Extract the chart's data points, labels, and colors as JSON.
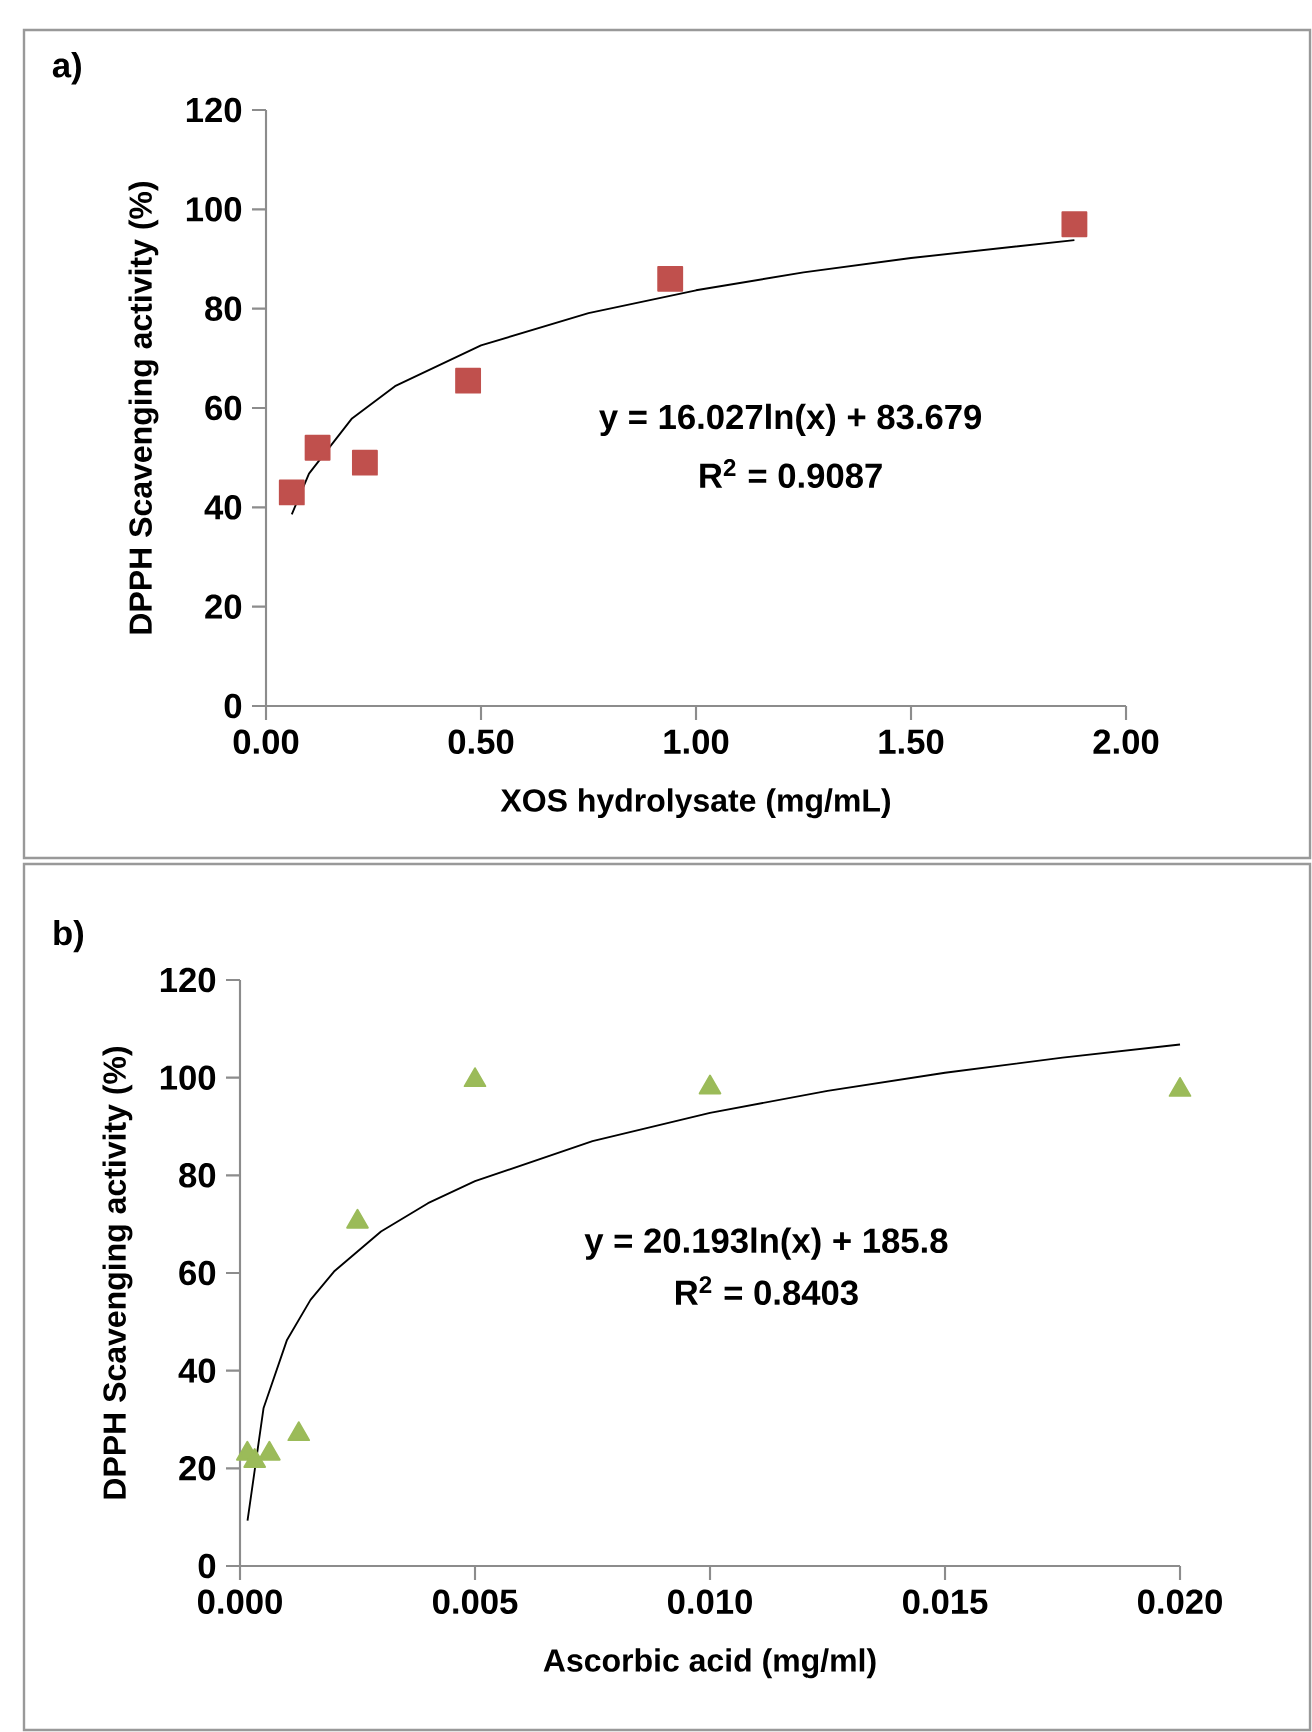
{
  "chart_data": [
    {
      "type": "scatter",
      "title": "a)",
      "xlabel": "XOS hydrolysate (mg/mL)",
      "ylabel": "DPPH Scavenging activity (%)",
      "series": [
        {
          "marker": "square",
          "color": "#c0504d",
          "x": [
            0.06,
            0.12,
            0.23,
            0.47,
            0.94,
            1.88
          ],
          "values": [
            43,
            52,
            49,
            65.5,
            86,
            97
          ]
        },
        {
          "type": "line",
          "marker": "none",
          "color": "#000000",
          "x": [
            0.06,
            0.1,
            0.2,
            0.3,
            0.5,
            0.75,
            1.0,
            1.25,
            1.5,
            1.88
          ],
          "values": [
            38.6,
            46.8,
            57.9,
            64.4,
            72.6,
            79.1,
            83.7,
            87.3,
            90.2,
            93.8
          ]
        }
      ],
      "xlim": [
        0,
        2
      ],
      "ylim": [
        0,
        120
      ],
      "xticks": [
        {
          "value": 0,
          "label": "0.00"
        },
        {
          "value": 0.5,
          "label": "0.50"
        },
        {
          "value": 1,
          "label": "1.00"
        },
        {
          "value": 1.5,
          "label": "1.50"
        },
        {
          "value": 2,
          "label": "2.00"
        }
      ],
      "yticks": [
        0,
        20,
        40,
        60,
        80,
        100,
        120
      ],
      "annotations": [
        "y = 16.027ln(x) + 83.679",
        "R$^{2}$ = 0.9087"
      ]
    },
    {
      "type": "scatter",
      "title": "b)",
      "xlabel": "Ascorbic acid (mg/ml)",
      "ylabel": "DPPH Scavenging activity (%)",
      "series": [
        {
          "marker": "triangle",
          "color": "#9bbb59",
          "x": [
            0.00015625,
            0.0003125,
            0.000625,
            0.00125,
            0.0025,
            0.005,
            0.01,
            0.02
          ],
          "values": [
            23,
            21.5,
            23,
            27,
            70.5,
            99.5,
            98,
            97.5
          ]
        },
        {
          "type": "line",
          "marker": "none",
          "color": "#000000",
          "x": [
            0.00016,
            0.0005,
            0.001,
            0.0015,
            0.002,
            0.003,
            0.004,
            0.005,
            0.0075,
            0.01,
            0.0125,
            0.015,
            0.0175,
            0.02
          ],
          "values": [
            9.3,
            32.3,
            46.3,
            54.5,
            60.3,
            68.5,
            74.3,
            78.8,
            87.0,
            92.8,
            97.3,
            101.0,
            104.1,
            106.8
          ]
        }
      ],
      "xlim": [
        0,
        0.02
      ],
      "ylim": [
        0,
        120
      ],
      "xticks": [
        {
          "value": 0,
          "label": "0.000"
        },
        {
          "value": 0.005,
          "label": "0.005"
        },
        {
          "value": 0.01,
          "label": "0.010"
        },
        {
          "value": 0.015,
          "label": "0.015"
        },
        {
          "value": 0.02,
          "label": "0.020"
        }
      ],
      "yticks": [
        0,
        20,
        40,
        60,
        80,
        100,
        120
      ],
      "annotations": [
        "y = 20.193ln(x) + 185.8",
        "R$^{2}$ = 0.8403"
      ]
    }
  ]
}
